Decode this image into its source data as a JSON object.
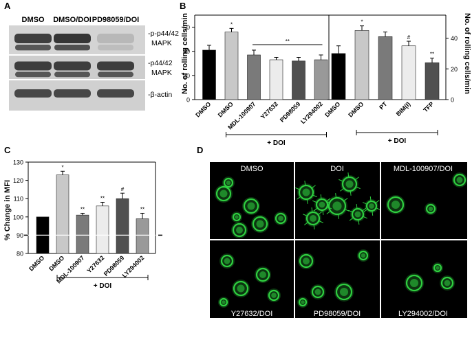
{
  "panels": {
    "A": {
      "letter": "A",
      "lanes": [
        "DMSO",
        "DMSO/DOI",
        "PD98059/DOI"
      ],
      "blots": [
        {
          "label_lines": [
            "-p-p44/42",
            "MAPK"
          ],
          "intensities": [
            0.95,
            1.0,
            0.25
          ]
        },
        {
          "label_lines": [
            "-p44/42",
            "MAPK"
          ],
          "intensities": [
            0.95,
            0.95,
            0.95
          ]
        },
        {
          "label_lines": [
            "-β-actin"
          ],
          "intensities": [
            0.9,
            0.9,
            0.9
          ]
        }
      ]
    },
    "D": {
      "letter": "D",
      "labels": [
        "DMSO",
        "DOI",
        "MDL-100907/DOI",
        "Y27632/DOI",
        "PD98059/DOI",
        "LY294002/DOI"
      ]
    }
  },
  "colors": {
    "black": "#000000",
    "light_gray": "#c8c8c8",
    "mid_gray": "#7a7a7a",
    "very_light": "#ececec",
    "dark_gray": "#505050",
    "gray": "#999999",
    "cell_green": "#2fd040",
    "micrograph_bg": "#000000",
    "threshold_line": "#ffffff"
  },
  "chart_data": [
    {
      "panel": "B",
      "type": "bar",
      "title": "",
      "ylabel": "No. of rolling cells/min",
      "ylim": [
        0,
        70
      ],
      "yticks": [
        0,
        20,
        40,
        60
      ],
      "categories": [
        "DMSO",
        "DMSO",
        "MDL-100907",
        "Y27632",
        "PD98059",
        "LY294002"
      ],
      "values": [
        41,
        56,
        37,
        33,
        32,
        33
      ],
      "errors": [
        4,
        3,
        4,
        2,
        3,
        4
      ],
      "bar_colors": [
        "black",
        "light_gray",
        "mid_gray",
        "very_light",
        "dark_gray",
        "gray"
      ],
      "annotations": [
        {
          "index": 1,
          "text": "*"
        }
      ],
      "bracket": {
        "from_index": 2,
        "to_index": 5,
        "text": "**"
      },
      "group_label": {
        "from_index": 1,
        "to_index": 5,
        "text": "+ DOI"
      }
    },
    {
      "panel": "B",
      "type": "bar",
      "title": "",
      "ylabel": "No. of rolling cells/min",
      "ylim": [
        0,
        55
      ],
      "yticks": [
        0,
        20,
        40
      ],
      "categories": [
        "DMSO",
        "DMSO",
        "PT",
        "BIM(I)",
        "TFP"
      ],
      "values": [
        30,
        45,
        41,
        35,
        24
      ],
      "errors": [
        5,
        3,
        3,
        3,
        3
      ],
      "bar_colors": [
        "black",
        "light_gray",
        "mid_gray",
        "very_light",
        "dark_gray"
      ],
      "annotations": [
        {
          "index": 1,
          "text": "*"
        },
        {
          "index": 3,
          "text": "#"
        },
        {
          "index": 4,
          "text": "**"
        }
      ],
      "group_label": {
        "from_index": 1,
        "to_index": 4,
        "text": "+ DOI"
      }
    },
    {
      "panel": "C",
      "type": "bar",
      "title": "",
      "ylabel": "% Change in MFI",
      "ylim": [
        80,
        130
      ],
      "yticks": [
        80,
        90,
        100,
        110,
        120,
        130
      ],
      "reference_line": 90,
      "categories": [
        "DMSO",
        "DMSO",
        "MDL-100907",
        "Y27632",
        "PD98059",
        "LY294002"
      ],
      "values": [
        100,
        123,
        101,
        106,
        110,
        99
      ],
      "errors": [
        0,
        2,
        1,
        2,
        3,
        3
      ],
      "bar_colors": [
        "black",
        "light_gray",
        "mid_gray",
        "very_light",
        "dark_gray",
        "gray"
      ],
      "annotations": [
        {
          "index": 1,
          "text": "*"
        },
        {
          "index": 2,
          "text": "**"
        },
        {
          "index": 3,
          "text": "**"
        },
        {
          "index": 4,
          "text": "#"
        },
        {
          "index": 5,
          "text": "**"
        }
      ],
      "group_label": {
        "from_index": 1,
        "to_index": 5,
        "text": "+ DOI"
      }
    }
  ]
}
